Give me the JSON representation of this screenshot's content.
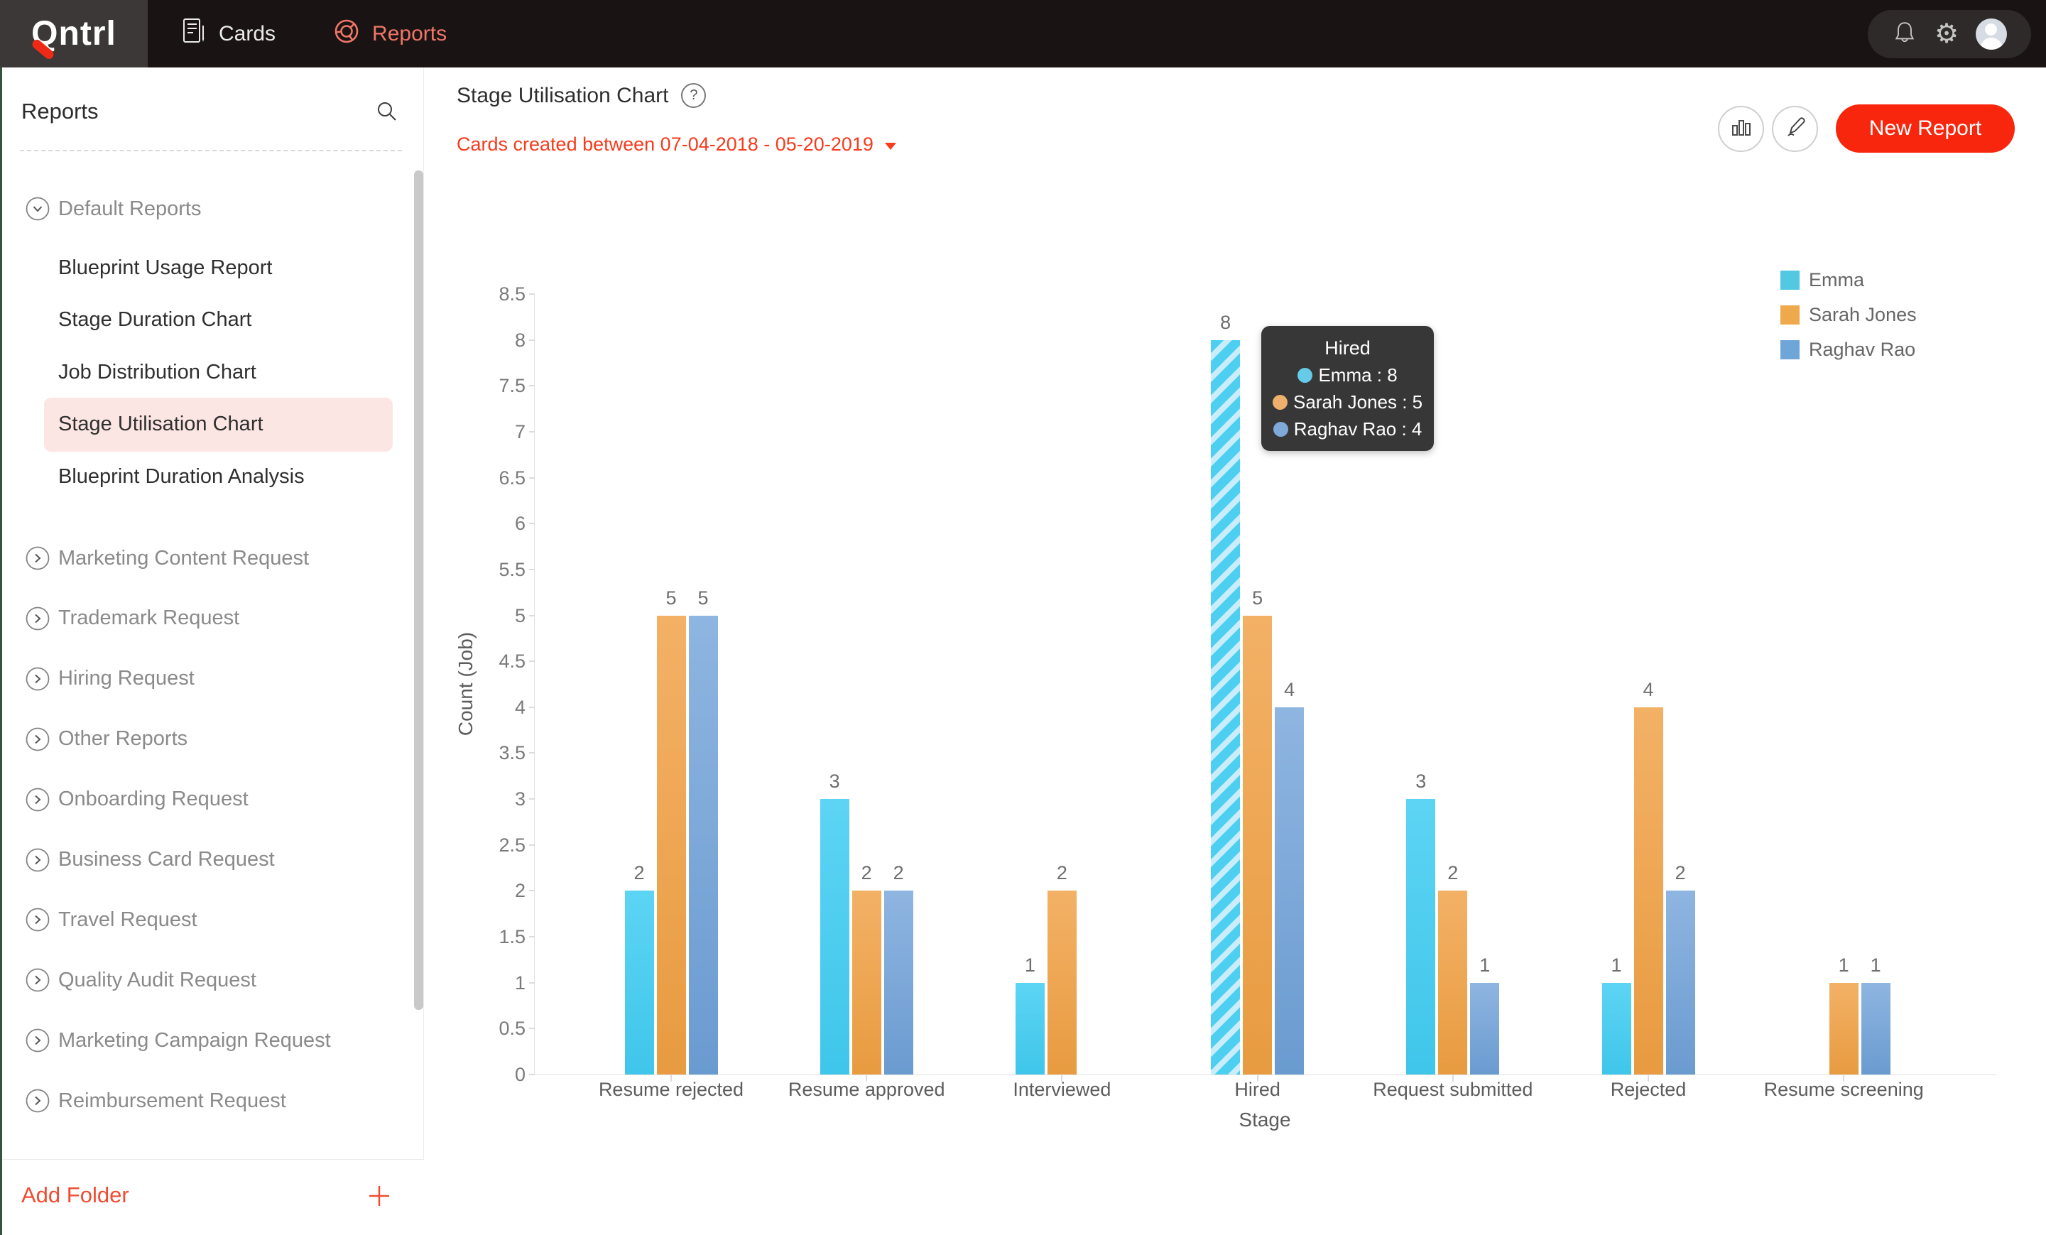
{
  "nav": {
    "logo": "Qntrl",
    "items": [
      {
        "label": "Cards",
        "icon": "cards-icon",
        "active": false
      },
      {
        "label": "Reports",
        "icon": "reports-donut-icon",
        "active": true
      }
    ],
    "active_color": "#ef7668"
  },
  "topbar": {
    "icons": [
      "bell-icon",
      "gear-icon",
      "avatar"
    ]
  },
  "sidebar": {
    "title": "Reports",
    "search_icon": "search-icon",
    "sections": [
      {
        "label": "Default Reports",
        "icon": "chevron-down-circle-icon",
        "expanded": true,
        "children": [
          "Blueprint Usage Report",
          "Stage Duration Chart",
          "Job Distribution Chart",
          "Stage Utilisation Chart",
          "Blueprint Duration Analysis"
        ],
        "selected_child": "Stage Utilisation Chart"
      }
    ],
    "folders": [
      "Marketing Content Request",
      "Trademark Request",
      "Hiring Request",
      "Other Reports",
      "Onboarding Request",
      "Business Card Request",
      "Travel Request",
      "Quality Audit Request",
      "Marketing Campaign Request",
      "Reimbursement Request"
    ],
    "add_folder_label": "Add Folder",
    "selected_bg": "#fce6e3",
    "accent_red": "#f24b30"
  },
  "header": {
    "title": "Stage Utilisation Chart",
    "help_icon": "help-icon",
    "date_filter": "Cards created between 07-04-2018 - 05-20-2019",
    "toolbar": {
      "chart_type_icon": "bar-chart-icon",
      "edit_icon": "pencil-icon",
      "new_report_label": "New Report"
    },
    "date_red": "#f73b1c",
    "button_red": "#f8260d"
  },
  "chart_data": {
    "type": "bar",
    "title": "Stage Utilisation Chart",
    "categories": [
      "Resume rejected",
      "Resume approved",
      "Interviewed",
      "Hired",
      "Request submitted",
      "Rejected",
      "Resume screening"
    ],
    "series": [
      {
        "name": "Emma",
        "color_top": "#5dd4f4",
        "color_bottom": "#3fc6ea",
        "legend_color": "#52c8e2",
        "values": [
          2,
          3,
          1,
          8,
          3,
          1,
          null
        ]
      },
      {
        "name": "Sarah Jones",
        "color_top": "#f3b166",
        "color_bottom": "#e89b40",
        "legend_color": "#eda94b",
        "values": [
          5,
          2,
          2,
          5,
          2,
          4,
          1
        ]
      },
      {
        "name": "Raghav Rao",
        "color_top": "#8fb5e1",
        "color_bottom": "#6a9bd0",
        "legend_color": "#6fa6d8",
        "values": [
          5,
          2,
          null,
          4,
          1,
          2,
          1
        ]
      }
    ],
    "xlabel": "Stage",
    "ylabel": "Count (Job)",
    "ylim": [
      0,
      8.5
    ],
    "ytick_step": 0.5,
    "grid": false,
    "legend_position": "top-right",
    "highlight": {
      "series": "Emma",
      "category": "Hired",
      "style": "hatched",
      "hatch_colors": [
        "#4ccff1",
        "#c9edfa"
      ]
    }
  },
  "tooltip": {
    "title": "Hired",
    "separator": " : ",
    "rows": [
      {
        "name": "Emma",
        "value": 8,
        "dot_color": "#66cbe9"
      },
      {
        "name": "Sarah Jones",
        "value": 5,
        "dot_color": "#eeb16d"
      },
      {
        "name": "Raghav Rao",
        "value": 4,
        "dot_color": "#7fa9d9"
      }
    ]
  }
}
